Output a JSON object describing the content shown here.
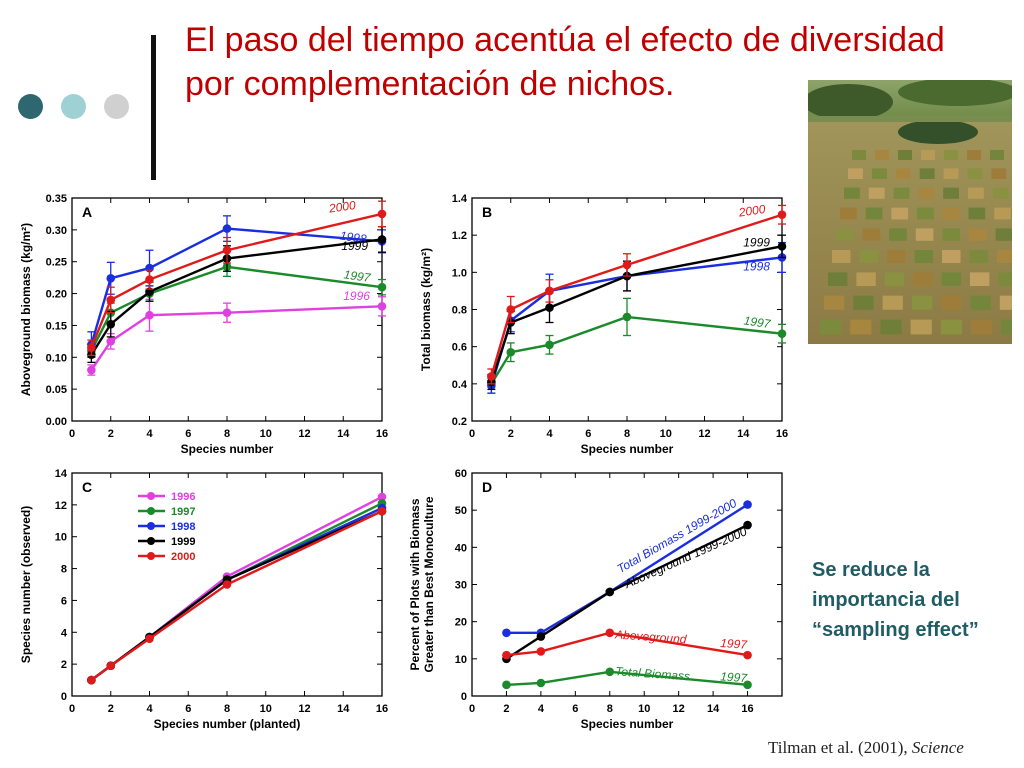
{
  "slide": {
    "title_line1": "El paso del tiempo acentúa el efecto de diversidad",
    "title_line2": "por complementación de nichos.",
    "note_line1": "Se reduce la",
    "note_line2": "importancia del",
    "note_line3": "“sampling effect”",
    "citation_authors": "Tilman et al. (2001), ",
    "citation_journal": "Science",
    "decor_dot_colors": [
      "#2e6770",
      "#9fd0d4",
      "#d0d0d0"
    ],
    "title_color": "#c00000",
    "note_color": "#1f5c66"
  },
  "chart_data": [
    {
      "type": "line",
      "panel": "A",
      "xlabel": "Species number",
      "ylabel": "Aboveground biomass (kg/m²)",
      "xlim": [
        0,
        16
      ],
      "ylim": [
        0,
        0.35
      ],
      "xticks": [
        "0",
        "2",
        "4",
        "6",
        "8",
        "10",
        "12",
        "14",
        "16"
      ],
      "yticks": [
        "0.00",
        "0.05",
        "0.10",
        "0.15",
        "0.20",
        "0.25",
        "0.30",
        "0.35"
      ],
      "x": [
        1,
        2,
        4,
        8,
        16
      ],
      "series": [
        {
          "name": "1996",
          "color": "#e040e0",
          "values": [
            0.08,
            0.125,
            0.166,
            0.17,
            0.18
          ],
          "err": [
            0.008,
            0.012,
            0.025,
            0.015,
            0.015
          ]
        },
        {
          "name": "1997",
          "color": "#1a8a2a",
          "values": [
            0.11,
            0.17,
            0.2,
            0.242,
            0.21
          ],
          "err": [
            0.01,
            0.015,
            0.012,
            0.015,
            0.012
          ]
        },
        {
          "name": "1998",
          "color": "#1a2ee0",
          "values": [
            0.12,
            0.224,
            0.24,
            0.302,
            0.282
          ],
          "err": [
            0.02,
            0.025,
            0.028,
            0.02,
            0.018
          ]
        },
        {
          "name": "1999",
          "color": "#000000",
          "values": [
            0.104,
            0.152,
            0.203,
            0.255,
            0.285
          ],
          "err": [
            0.012,
            0.02,
            0.015,
            0.02,
            0.02
          ]
        },
        {
          "name": "2000",
          "color": "#e01a1a",
          "values": [
            0.115,
            0.19,
            0.222,
            0.268,
            0.325
          ],
          "err": [
            0.012,
            0.02,
            0.015,
            0.02,
            0.02
          ]
        }
      ]
    },
    {
      "type": "line",
      "panel": "B",
      "xlabel": "Species number",
      "ylabel": "Total biomass (kg/m²)",
      "xlim": [
        0,
        16
      ],
      "ylim": [
        0.2,
        1.4
      ],
      "xticks": [
        "0",
        "2",
        "4",
        "6",
        "8",
        "10",
        "12",
        "14",
        "16"
      ],
      "yticks": [
        "0.2",
        "0.4",
        "0.6",
        "0.8",
        "1.0",
        "1.2",
        "1.4"
      ],
      "x": [
        1,
        2,
        4,
        8,
        16
      ],
      "series": [
        {
          "name": "1997",
          "color": "#1a8a2a",
          "values": [
            0.4,
            0.57,
            0.61,
            0.76,
            0.67
          ],
          "err": [
            0.05,
            0.05,
            0.05,
            0.1,
            0.05
          ]
        },
        {
          "name": "1998",
          "color": "#1a2ee0",
          "values": [
            0.39,
            0.74,
            0.9,
            0.98,
            1.08
          ],
          "err": [
            0.04,
            0.06,
            0.09,
            0.08,
            0.08
          ]
        },
        {
          "name": "1999",
          "color": "#000000",
          "values": [
            0.41,
            0.73,
            0.81,
            0.98,
            1.14
          ],
          "err": [
            0.04,
            0.06,
            0.08,
            0.08,
            0.06
          ]
        },
        {
          "name": "2000",
          "color": "#e01a1a",
          "values": [
            0.44,
            0.8,
            0.9,
            1.04,
            1.31
          ],
          "err": [
            0.04,
            0.07,
            0.06,
            0.06,
            0.05
          ]
        }
      ]
    },
    {
      "type": "line",
      "panel": "C",
      "xlabel": "Species number (planted)",
      "ylabel": "Species number (observed)",
      "xlim": [
        0,
        16
      ],
      "ylim": [
        0,
        14
      ],
      "xticks": [
        "0",
        "2",
        "4",
        "6",
        "8",
        "10",
        "12",
        "14",
        "16"
      ],
      "yticks": [
        "0",
        "2",
        "4",
        "6",
        "8",
        "10",
        "12",
        "14"
      ],
      "x": [
        1,
        2,
        4,
        8,
        16
      ],
      "legend": "top-left",
      "series": [
        {
          "name": "1996",
          "color": "#e040e0",
          "values": [
            1,
            1.9,
            3.7,
            7.5,
            12.5
          ]
        },
        {
          "name": "1997",
          "color": "#1a8a2a",
          "values": [
            1,
            1.9,
            3.7,
            7.3,
            12.1
          ]
        },
        {
          "name": "1998",
          "color": "#1a2ee0",
          "values": [
            1,
            1.9,
            3.7,
            7.3,
            11.8
          ]
        },
        {
          "name": "1999",
          "color": "#000000",
          "values": [
            1,
            1.9,
            3.7,
            7.3,
            11.6
          ]
        },
        {
          "name": "2000",
          "color": "#e01a1a",
          "values": [
            1,
            1.9,
            3.6,
            7.0,
            11.6
          ]
        }
      ]
    },
    {
      "type": "line",
      "panel": "D",
      "xlabel": "Species number",
      "ylabel_line1": "Percent of Plots with Biomass",
      "ylabel_line2": "Greater than Best Monoculture",
      "xlim": [
        0,
        18
      ],
      "ylim": [
        0,
        60
      ],
      "xticks": [
        "0",
        "2",
        "4",
        "6",
        "8",
        "10",
        "12",
        "14",
        "16"
      ],
      "yticks": [
        "0",
        "10",
        "20",
        "30",
        "40",
        "50",
        "60"
      ],
      "x": [
        2,
        4,
        8,
        16
      ],
      "series": [
        {
          "name": "Total Biomass 1999-2000",
          "color": "#1a2ee0",
          "values": [
            17,
            17,
            28,
            51.5
          ]
        },
        {
          "name": "Aboveground 1999-2000",
          "color": "#000000",
          "values": [
            10,
            16,
            28,
            46
          ]
        },
        {
          "name": "Aboveground 1997",
          "color": "#e01a1a",
          "values": [
            11,
            12,
            17,
            11
          ]
        },
        {
          "name": "Total Biomass 1997",
          "color": "#1a8a2a",
          "values": [
            3,
            3.5,
            6.5,
            3
          ]
        }
      ]
    }
  ]
}
